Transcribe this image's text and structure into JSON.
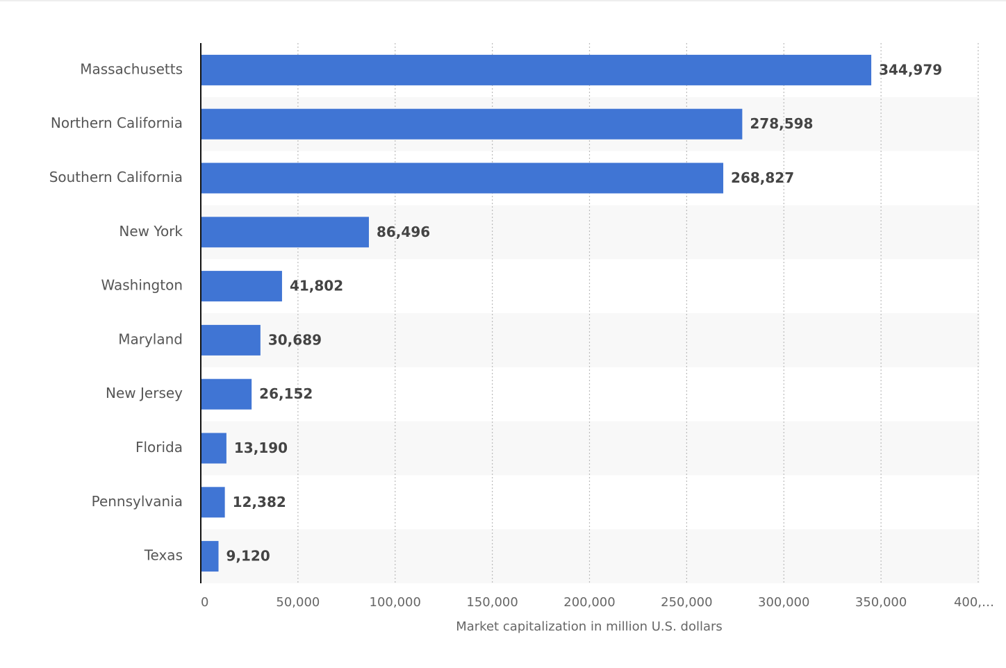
{
  "chart_data": {
    "type": "bar",
    "orientation": "horizontal",
    "x_label": "Market capitalization in million U.S. dollars",
    "categories": [
      "Massachusetts",
      "Northern California",
      "Southern California",
      "New York",
      "Washington",
      "Maryland",
      "New Jersey",
      "Florida",
      "Pennsylvania",
      "Texas"
    ],
    "values": [
      344979,
      278598,
      268827,
      86496,
      41802,
      30689,
      26152,
      13190,
      12382,
      9120
    ],
    "value_labels": [
      "344,979",
      "278,598",
      "268,827",
      "86,496",
      "41,802",
      "30,689",
      "26,152",
      "13,190",
      "12,382",
      "9,120"
    ],
    "color": "#4075d4",
    "xlim": [
      0,
      400000
    ],
    "xticks": [
      0,
      {
        "value": 50000,
        "label": "50,000"
      },
      {
        "value": 100000,
        "label": "100,000"
      },
      {
        "value": 150000,
        "label": "150,000"
      },
      {
        "value": 200000,
        "label": "200,000"
      },
      {
        "value": 250000,
        "label": "250,000"
      },
      {
        "value": 300000,
        "label": "300,000"
      },
      {
        "value": 350000,
        "label": "350,000"
      },
      {
        "value": 400000,
        "label": "400,…"
      }
    ],
    "grid": true
  }
}
